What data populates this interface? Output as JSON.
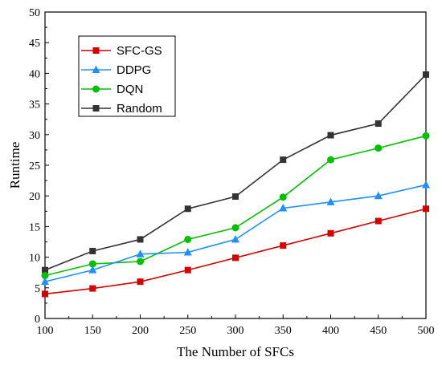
{
  "chart_data": {
    "type": "line",
    "title": "",
    "xlabel": "The Number of SFCs",
    "ylabel": "Runtime",
    "xlim": [
      100,
      500
    ],
    "ylim": [
      0,
      50
    ],
    "xticks": [
      "100",
      "150",
      "200",
      "250",
      "300",
      "350",
      "400",
      "450",
      "500"
    ],
    "yticks": [
      "0",
      "5",
      "10",
      "15",
      "20",
      "25",
      "30",
      "35",
      "40",
      "45",
      "50"
    ],
    "grid": false,
    "legend_position": "top-left",
    "x": [
      100,
      150,
      200,
      250,
      300,
      350,
      400,
      450,
      500
    ],
    "series": [
      {
        "name": "SFC-GS",
        "color": "#d40000",
        "marker": "square",
        "values": [
          4.0,
          4.9,
          6.0,
          7.9,
          9.9,
          11.9,
          13.9,
          15.9,
          17.9
        ]
      },
      {
        "name": "DDPG",
        "color": "#1e90ff",
        "marker": "triangle",
        "values": [
          6.0,
          7.9,
          10.5,
          10.8,
          12.9,
          18.0,
          19.0,
          20.0,
          21.8
        ]
      },
      {
        "name": "DQN",
        "color": "#00c000",
        "marker": "circle",
        "values": [
          7.0,
          8.9,
          9.3,
          12.9,
          14.8,
          19.8,
          25.9,
          27.8,
          29.8
        ]
      },
      {
        "name": "Random",
        "color": "#333333",
        "marker": "square",
        "values": [
          7.9,
          11.0,
          12.9,
          17.9,
          19.9,
          25.9,
          29.9,
          31.8,
          39.8
        ]
      }
    ]
  }
}
